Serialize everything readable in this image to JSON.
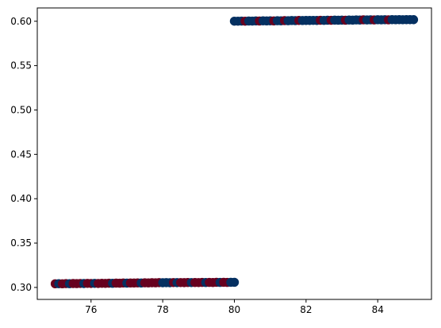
{
  "chart_data": {
    "type": "scatter",
    "title": "",
    "xlabel": "",
    "ylabel": "",
    "xlim": [
      74.5,
      85.5
    ],
    "ylim": [
      0.2865,
      0.615
    ],
    "grid": false,
    "legend": "none",
    "colors": [
      "#053061",
      "#67001f"
    ],
    "x_ticks": [
      76,
      78,
      80,
      82,
      84
    ],
    "x_tick_labels": [
      "76",
      "78",
      "80",
      "82",
      "84"
    ],
    "y_ticks": [
      0.3,
      0.35,
      0.4,
      0.45,
      0.5,
      0.55,
      0.6
    ],
    "y_tick_labels": [
      "0.30",
      "0.35",
      "0.40",
      "0.45",
      "0.50",
      "0.55",
      "0.60"
    ],
    "clusters": [
      {
        "x_range": [
          75.0,
          80.0
        ],
        "y_range": [
          0.304,
          0.306
        ]
      },
      {
        "x_range": [
          80.0,
          85.0
        ],
        "y_range": [
          0.6,
          0.602
        ]
      }
    ],
    "series": [
      {
        "x": [
          75.0,
          75.1,
          75.2,
          75.3,
          75.4,
          75.5,
          75.6,
          75.7,
          75.8,
          75.9,
          76.0,
          76.1,
          76.2,
          76.3,
          76.4,
          76.5,
          76.6,
          76.7,
          76.8,
          76.9,
          77.0,
          77.1,
          77.2,
          77.3,
          77.4,
          77.5,
          77.6,
          77.7,
          77.8,
          77.9,
          78.0,
          78.1,
          78.2,
          78.3,
          78.4,
          78.5,
          78.6,
          78.7,
          78.8,
          78.9,
          79.0,
          79.1,
          79.2,
          79.3,
          79.4,
          79.5,
          79.6,
          79.7,
          79.8,
          79.9,
          80.0,
          80.0,
          80.1,
          80.2,
          80.3,
          80.4,
          80.5,
          80.6,
          80.7,
          80.8,
          80.9,
          81.0,
          81.1,
          81.2,
          81.3,
          81.4,
          81.5,
          81.6,
          81.7,
          81.8,
          81.9,
          82.0,
          82.1,
          82.2,
          82.3,
          82.4,
          82.5,
          82.6,
          82.7,
          82.8,
          82.9,
          83.0,
          83.1,
          83.2,
          83.3,
          83.4,
          83.5,
          83.6,
          83.7,
          83.8,
          83.9,
          84.0,
          84.1,
          84.2,
          84.3,
          84.4,
          84.5,
          84.6,
          84.7,
          84.8,
          84.9,
          85.0
        ],
        "y": [
          0.3041,
          0.3042,
          0.3041,
          0.3043,
          0.3042,
          0.3044,
          0.3043,
          0.3045,
          0.3044,
          0.3046,
          0.3045,
          0.3046,
          0.3045,
          0.3047,
          0.3046,
          0.3048,
          0.3047,
          0.3049,
          0.3048,
          0.305,
          0.3049,
          0.305,
          0.305,
          0.3051,
          0.305,
          0.3052,
          0.3051,
          0.3053,
          0.3052,
          0.3054,
          0.3053,
          0.3054,
          0.3053,
          0.3055,
          0.3054,
          0.3055,
          0.3054,
          0.3056,
          0.3055,
          0.3056,
          0.3055,
          0.3057,
          0.3056,
          0.3057,
          0.3056,
          0.3058,
          0.3057,
          0.3058,
          0.3057,
          0.3058,
          0.3058,
          0.6001,
          0.6001,
          0.6002,
          0.6001,
          0.6003,
          0.6002,
          0.6004,
          0.6003,
          0.6005,
          0.6004,
          0.6005,
          0.6004,
          0.6006,
          0.6005,
          0.6007,
          0.6006,
          0.6008,
          0.6007,
          0.6009,
          0.6008,
          0.6009,
          0.6009,
          0.601,
          0.6009,
          0.6011,
          0.601,
          0.6012,
          0.6011,
          0.6013,
          0.6012,
          0.6013,
          0.6012,
          0.6014,
          0.6013,
          0.6015,
          0.6014,
          0.6016,
          0.6015,
          0.6016,
          0.6015,
          0.6017,
          0.6016,
          0.6017,
          0.6016,
          0.6018,
          0.6017,
          0.6018,
          0.6017,
          0.6018,
          0.6018,
          0.6018
        ],
        "colors": [
          "#67001f",
          "#053061",
          "#67001f",
          "#67001f",
          "#053061",
          "#67001f",
          "#67001f",
          "#67001f",
          "#053061",
          "#67001f",
          "#67001f",
          "#053061",
          "#67001f",
          "#67001f",
          "#67001f",
          "#67001f",
          "#053061",
          "#67001f",
          "#67001f",
          "#67001f",
          "#053061",
          "#67001f",
          "#67001f",
          "#67001f",
          "#053061",
          "#67001f",
          "#67001f",
          "#67001f",
          "#67001f",
          "#67001f",
          "#053061",
          "#053061",
          "#053061",
          "#67001f",
          "#053061",
          "#67001f",
          "#67001f",
          "#67001f",
          "#053061",
          "#67001f",
          "#67001f",
          "#67001f",
          "#053061",
          "#67001f",
          "#67001f",
          "#67001f",
          "#053061",
          "#67001f",
          "#67001f",
          "#053061",
          "#053061",
          "#053061",
          "#053061",
          "#053061",
          "#67001f",
          "#053061",
          "#053061",
          "#053061",
          "#67001f",
          "#053061",
          "#053061",
          "#053061",
          "#67001f",
          "#053061",
          "#053061",
          "#67001f",
          "#053061",
          "#053061",
          "#053061",
          "#67001f",
          "#053061",
          "#053061",
          "#053061",
          "#053061",
          "#053061",
          "#67001f",
          "#053061",
          "#053061",
          "#67001f",
          "#053061",
          "#053061",
          "#053061",
          "#67001f",
          "#053061",
          "#053061",
          "#053061",
          "#053061",
          "#67001f",
          "#053061",
          "#053061",
          "#67001f",
          "#053061",
          "#053061",
          "#053061",
          "#67001f",
          "#053061",
          "#053061",
          "#053061",
          "#053061",
          "#053061",
          "#053061",
          "#053061"
        ]
      }
    ]
  }
}
